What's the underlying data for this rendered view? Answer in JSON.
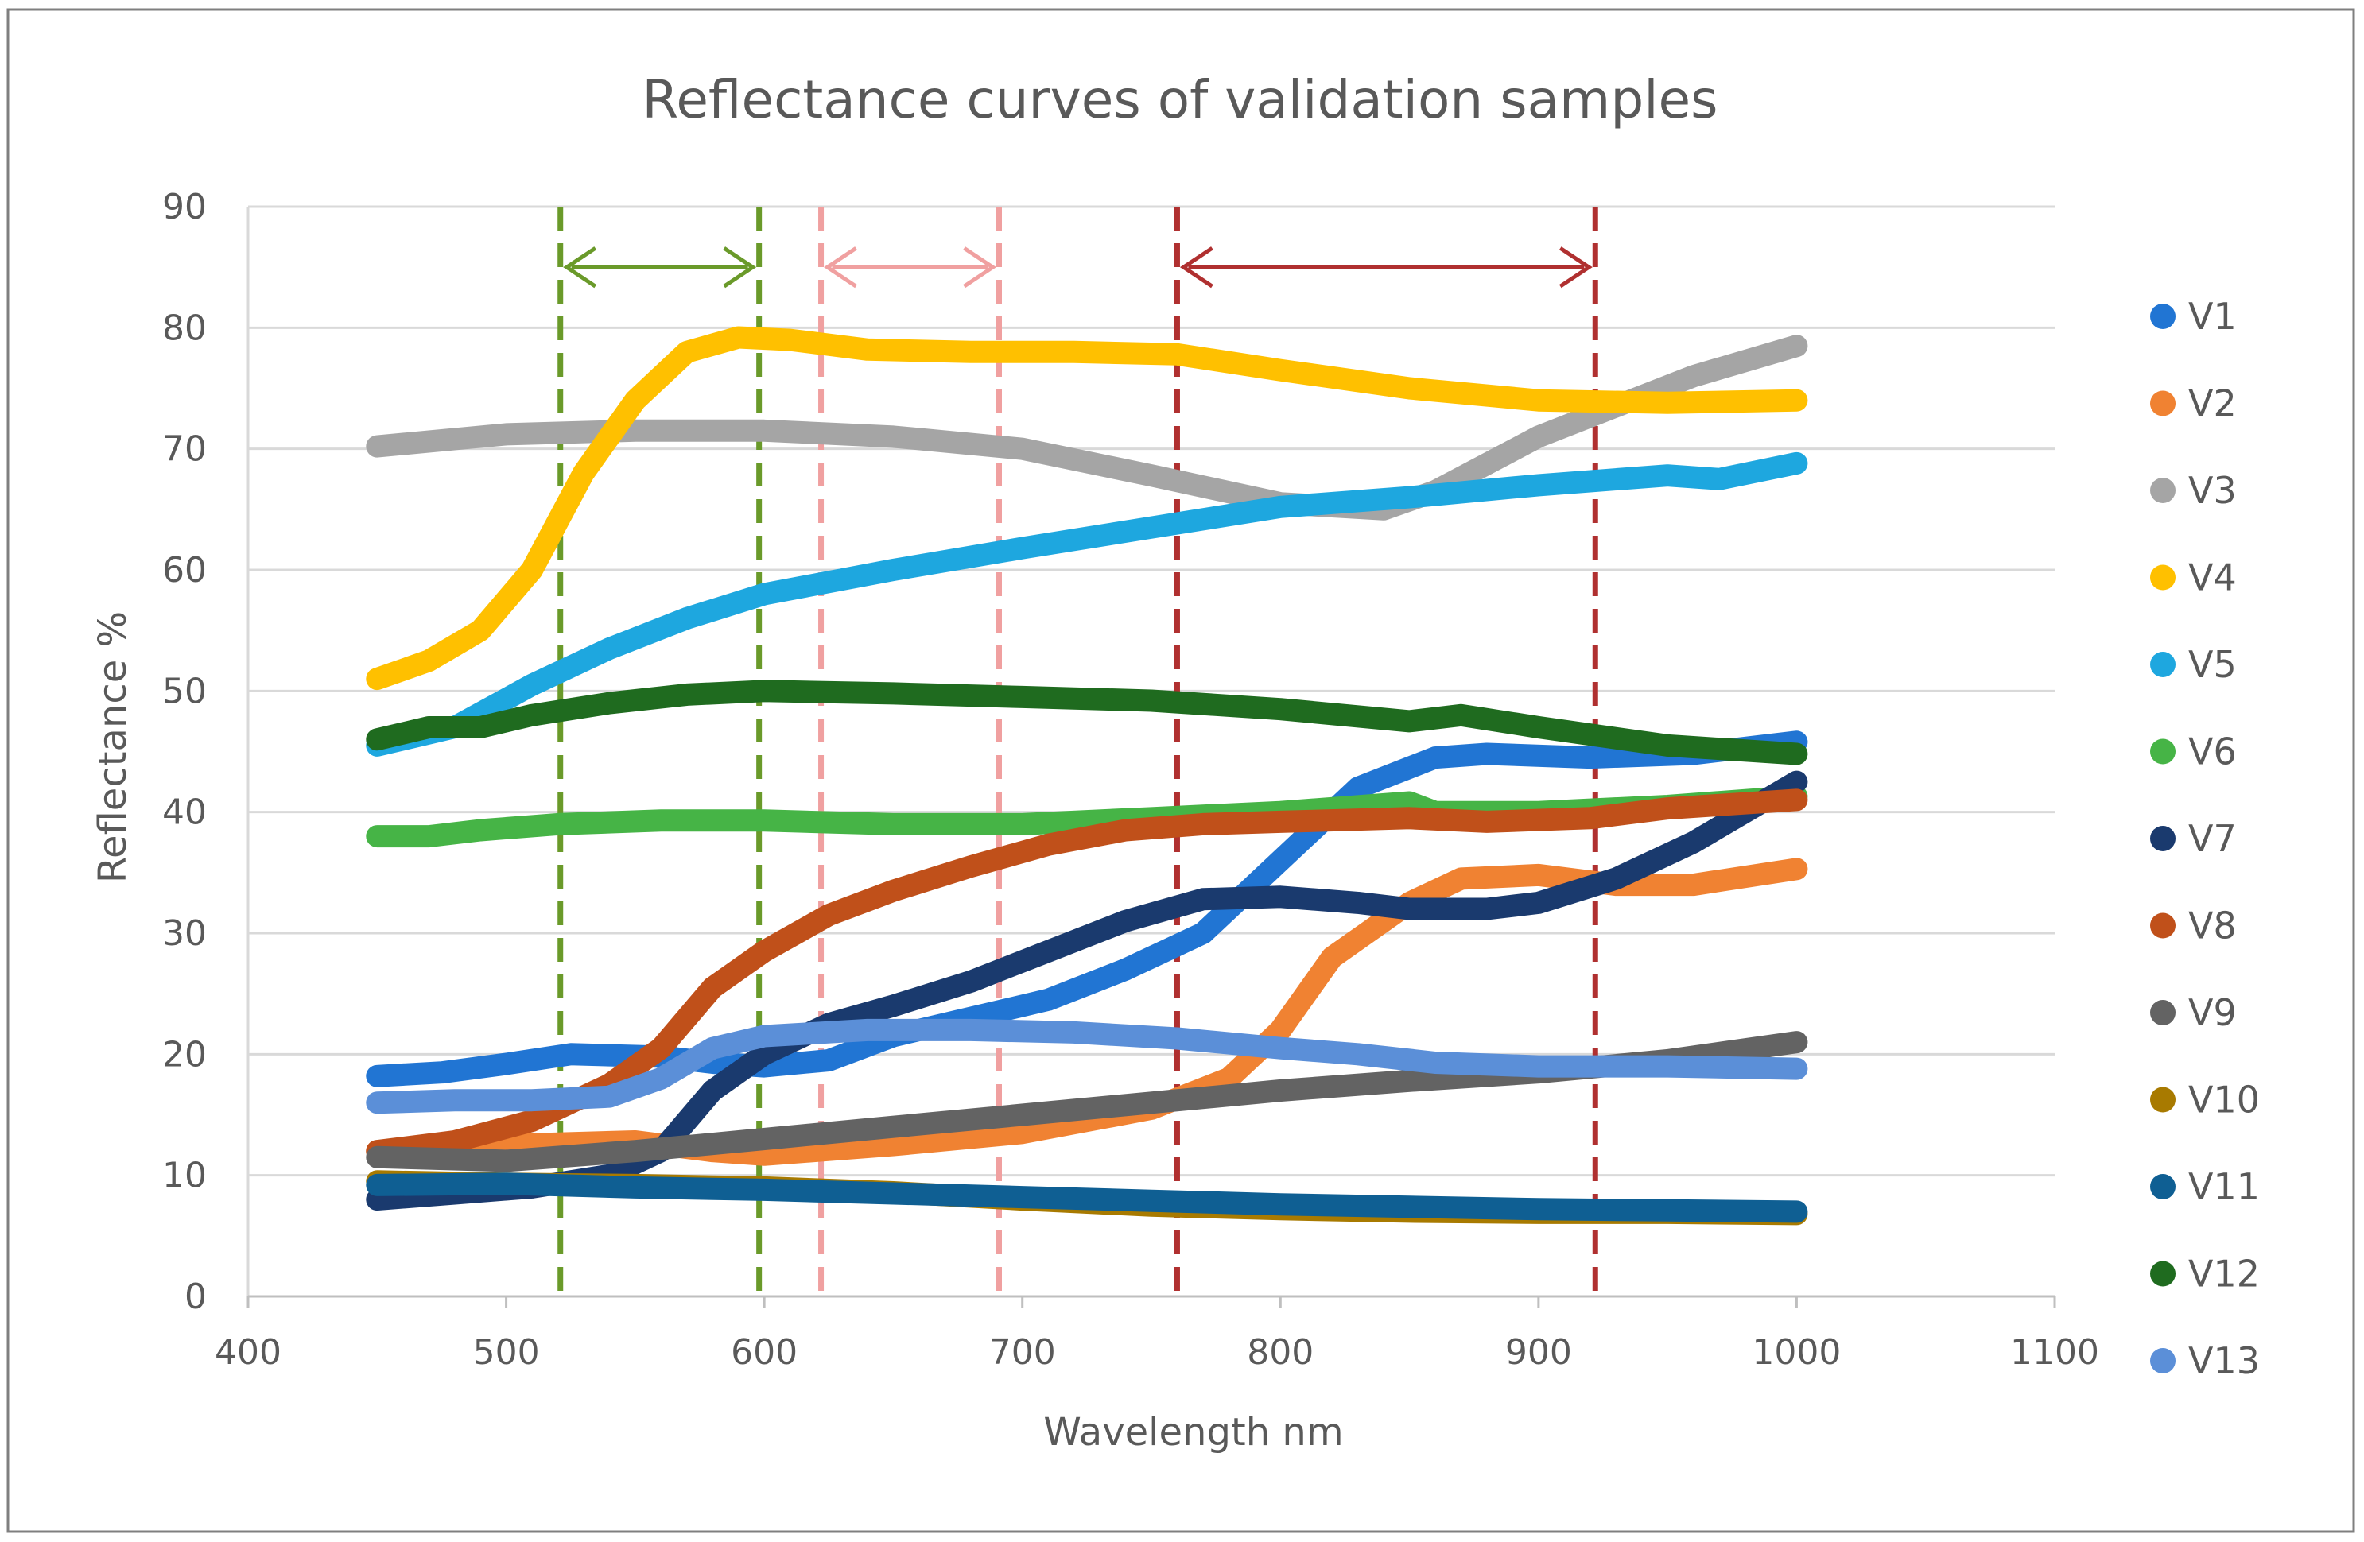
{
  "chart_data": {
    "type": "line",
    "title": "Reflectance curves of validation samples",
    "xlabel": "Wavelength nm",
    "ylabel": "Reflectance %",
    "xlim": [
      400,
      1100
    ],
    "ylim": [
      0,
      90
    ],
    "xticks": [
      "400",
      "500",
      "600",
      "700",
      "800",
      "900",
      "1000",
      "1100"
    ],
    "yticks": [
      "0",
      "10",
      "20",
      "30",
      "40",
      "50",
      "60",
      "70",
      "80",
      "90"
    ],
    "grid": "horizontal",
    "legend_position": "right",
    "series": [
      {
        "name": "V1",
        "color": "#2175d3",
        "points": [
          [
            450,
            18.2
          ],
          [
            475,
            18.5
          ],
          [
            500,
            19.2
          ],
          [
            525,
            20.0
          ],
          [
            560,
            19.8
          ],
          [
            580,
            19.3
          ],
          [
            600,
            19.0
          ],
          [
            625,
            19.5
          ],
          [
            650,
            21.5
          ],
          [
            680,
            23.0
          ],
          [
            710,
            24.5
          ],
          [
            740,
            27.0
          ],
          [
            770,
            30.0
          ],
          [
            800,
            36.0
          ],
          [
            830,
            42.0
          ],
          [
            860,
            44.5
          ],
          [
            880,
            44.8
          ],
          [
            920,
            44.5
          ],
          [
            960,
            44.8
          ],
          [
            1000,
            45.8
          ]
        ]
      },
      {
        "name": "V2",
        "color": "#f08232",
        "points": [
          [
            450,
            12.0
          ],
          [
            500,
            12.5
          ],
          [
            550,
            12.8
          ],
          [
            580,
            12.0
          ],
          [
            600,
            11.7
          ],
          [
            650,
            12.5
          ],
          [
            700,
            13.5
          ],
          [
            750,
            15.5
          ],
          [
            780,
            18.0
          ],
          [
            800,
            22.0
          ],
          [
            820,
            28.0
          ],
          [
            850,
            32.5
          ],
          [
            870,
            34.5
          ],
          [
            900,
            34.8
          ],
          [
            930,
            34.0
          ],
          [
            960,
            34.0
          ],
          [
            1000,
            35.3
          ]
        ]
      },
      {
        "name": "V3",
        "color": "#a5a5a5",
        "points": [
          [
            450,
            70.2
          ],
          [
            500,
            71.2
          ],
          [
            550,
            71.5
          ],
          [
            600,
            71.5
          ],
          [
            650,
            71.0
          ],
          [
            700,
            70.0
          ],
          [
            750,
            67.8
          ],
          [
            800,
            65.5
          ],
          [
            840,
            65.0
          ],
          [
            860,
            66.5
          ],
          [
            900,
            71.0
          ],
          [
            930,
            73.5
          ],
          [
            960,
            76.0
          ],
          [
            1000,
            78.5
          ]
        ]
      },
      {
        "name": "V4",
        "color": "#ffc000",
        "points": [
          [
            450,
            51.0
          ],
          [
            470,
            52.5
          ],
          [
            490,
            55.0
          ],
          [
            510,
            60.0
          ],
          [
            530,
            68.0
          ],
          [
            550,
            74.0
          ],
          [
            570,
            78.0
          ],
          [
            590,
            79.2
          ],
          [
            610,
            79.0
          ],
          [
            640,
            78.2
          ],
          [
            680,
            78.0
          ],
          [
            720,
            78.0
          ],
          [
            760,
            77.8
          ],
          [
            800,
            76.5
          ],
          [
            850,
            75.0
          ],
          [
            900,
            74.0
          ],
          [
            950,
            73.8
          ],
          [
            1000,
            74.0
          ]
        ]
      },
      {
        "name": "V5",
        "color": "#1ea7df",
        "points": [
          [
            450,
            45.5
          ],
          [
            480,
            47.0
          ],
          [
            510,
            50.5
          ],
          [
            540,
            53.5
          ],
          [
            570,
            56.0
          ],
          [
            600,
            58.0
          ],
          [
            650,
            60.0
          ],
          [
            700,
            61.8
          ],
          [
            750,
            63.5
          ],
          [
            800,
            65.2
          ],
          [
            850,
            66.0
          ],
          [
            900,
            67.0
          ],
          [
            950,
            67.8
          ],
          [
            970,
            67.5
          ],
          [
            1000,
            68.8
          ]
        ]
      },
      {
        "name": "V6",
        "color": "#46b446",
        "points": [
          [
            450,
            38.0
          ],
          [
            470,
            38.0
          ],
          [
            490,
            38.5
          ],
          [
            520,
            39.0
          ],
          [
            560,
            39.3
          ],
          [
            600,
            39.3
          ],
          [
            650,
            39.0
          ],
          [
            700,
            39.0
          ],
          [
            750,
            39.5
          ],
          [
            800,
            40.0
          ],
          [
            850,
            40.8
          ],
          [
            860,
            40.0
          ],
          [
            900,
            40.0
          ],
          [
            950,
            40.5
          ],
          [
            1000,
            41.3
          ]
        ]
      },
      {
        "name": "V7",
        "color": "#1a3a6e",
        "points": [
          [
            450,
            8.0
          ],
          [
            480,
            8.5
          ],
          [
            510,
            9.0
          ],
          [
            540,
            10.0
          ],
          [
            560,
            12.0
          ],
          [
            580,
            17.0
          ],
          [
            600,
            20.0
          ],
          [
            625,
            22.5
          ],
          [
            650,
            24.0
          ],
          [
            680,
            26.0
          ],
          [
            710,
            28.5
          ],
          [
            740,
            31.0
          ],
          [
            770,
            32.8
          ],
          [
            800,
            33.0
          ],
          [
            830,
            32.5
          ],
          [
            850,
            32.0
          ],
          [
            880,
            32.0
          ],
          [
            900,
            32.5
          ],
          [
            930,
            34.5
          ],
          [
            960,
            37.5
          ],
          [
            1000,
            42.5
          ]
        ]
      },
      {
        "name": "V8",
        "color": "#c0501a",
        "points": [
          [
            450,
            12.0
          ],
          [
            480,
            12.8
          ],
          [
            510,
            14.5
          ],
          [
            540,
            17.5
          ],
          [
            560,
            20.5
          ],
          [
            580,
            25.5
          ],
          [
            600,
            28.5
          ],
          [
            625,
            31.5
          ],
          [
            650,
            33.5
          ],
          [
            680,
            35.5
          ],
          [
            710,
            37.3
          ],
          [
            740,
            38.5
          ],
          [
            770,
            39.0
          ],
          [
            800,
            39.2
          ],
          [
            850,
            39.5
          ],
          [
            880,
            39.2
          ],
          [
            920,
            39.5
          ],
          [
            950,
            40.3
          ],
          [
            1000,
            41.0
          ]
        ]
      },
      {
        "name": "V9",
        "color": "#636363",
        "points": [
          [
            450,
            11.5
          ],
          [
            500,
            11.2
          ],
          [
            550,
            12.0
          ],
          [
            600,
            13.0
          ],
          [
            650,
            14.0
          ],
          [
            700,
            15.0
          ],
          [
            750,
            16.0
          ],
          [
            800,
            17.0
          ],
          [
            850,
            17.8
          ],
          [
            900,
            18.5
          ],
          [
            950,
            19.5
          ],
          [
            1000,
            21.0
          ]
        ]
      },
      {
        "name": "V10",
        "color": "#a87a00",
        "points": [
          [
            450,
            9.5
          ],
          [
            500,
            9.3
          ],
          [
            550,
            9.2
          ],
          [
            600,
            9.0
          ],
          [
            650,
            8.6
          ],
          [
            700,
            8.0
          ],
          [
            750,
            7.5
          ],
          [
            800,
            7.2
          ],
          [
            850,
            7.0
          ],
          [
            900,
            6.9
          ],
          [
            950,
            6.9
          ],
          [
            1000,
            6.8
          ]
        ]
      },
      {
        "name": "V11",
        "color": "#0f5f93",
        "points": [
          [
            450,
            9.2
          ],
          [
            500,
            9.3
          ],
          [
            550,
            9.0
          ],
          [
            600,
            8.8
          ],
          [
            650,
            8.5
          ],
          [
            700,
            8.2
          ],
          [
            750,
            7.9
          ],
          [
            800,
            7.6
          ],
          [
            850,
            7.4
          ],
          [
            900,
            7.2
          ],
          [
            950,
            7.1
          ],
          [
            1000,
            7.0
          ]
        ]
      },
      {
        "name": "V12",
        "color": "#1f6b1f",
        "points": [
          [
            450,
            46.0
          ],
          [
            470,
            47.0
          ],
          [
            490,
            47.0
          ],
          [
            510,
            48.0
          ],
          [
            540,
            49.0
          ],
          [
            570,
            49.7
          ],
          [
            600,
            50.0
          ],
          [
            650,
            49.8
          ],
          [
            700,
            49.5
          ],
          [
            750,
            49.2
          ],
          [
            800,
            48.5
          ],
          [
            850,
            47.5
          ],
          [
            870,
            48.0
          ],
          [
            900,
            47.0
          ],
          [
            950,
            45.5
          ],
          [
            1000,
            44.8
          ]
        ]
      },
      {
        "name": "V13",
        "color": "#5b8fd8",
        "points": [
          [
            450,
            16.0
          ],
          [
            480,
            16.2
          ],
          [
            510,
            16.2
          ],
          [
            540,
            16.5
          ],
          [
            560,
            18.0
          ],
          [
            580,
            20.5
          ],
          [
            600,
            21.5
          ],
          [
            640,
            22.0
          ],
          [
            680,
            22.0
          ],
          [
            720,
            21.8
          ],
          [
            760,
            21.3
          ],
          [
            800,
            20.5
          ],
          [
            830,
            20.0
          ],
          [
            860,
            19.3
          ],
          [
            900,
            19.0
          ],
          [
            950,
            19.0
          ],
          [
            1000,
            18.8
          ]
        ]
      }
    ],
    "annotations": [
      {
        "kind": "vline-dashed",
        "x": 521,
        "color": "#6a9a2a"
      },
      {
        "kind": "vline-dashed",
        "x": 598,
        "color": "#6a9a2a"
      },
      {
        "kind": "arrow-double",
        "x1": 521,
        "x2": 598,
        "y": 85,
        "color": "#6a9a2a"
      },
      {
        "kind": "vline-dashed",
        "x": 622,
        "color": "#f0a0a0"
      },
      {
        "kind": "vline-dashed",
        "x": 691,
        "color": "#f0a0a0"
      },
      {
        "kind": "arrow-double",
        "x1": 622,
        "x2": 691,
        "y": 85,
        "color": "#f0a0a0"
      },
      {
        "kind": "vline-dashed",
        "x": 760,
        "color": "#b03030"
      },
      {
        "kind": "vline-dashed",
        "x": 922,
        "color": "#b03030"
      },
      {
        "kind": "arrow-double",
        "x1": 760,
        "x2": 922,
        "y": 85,
        "color": "#b03030"
      }
    ]
  }
}
